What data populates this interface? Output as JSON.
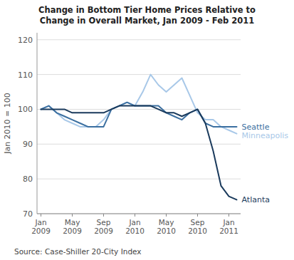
{
  "chart_data": {
    "type": "line",
    "title": "Change in Bottom Tier Home Prices Relative to\nChange in Overall Market, Jan 2009 - Feb 2011",
    "y_label": "Jan 2010 = 100",
    "source": "Source:  Case-Shiller 20-City Index",
    "categories": [
      "Jan\n2009",
      null,
      null,
      null,
      "May\n2009",
      null,
      null,
      null,
      "Sep\n2009",
      null,
      null,
      null,
      "Jan\n2010",
      null,
      null,
      null,
      "May\n2010",
      null,
      null,
      null,
      "Sep\n2010",
      null,
      null,
      null,
      "Jan\n2011",
      null
    ],
    "ylim": [
      70,
      122
    ],
    "yticks": [
      70,
      80,
      90,
      100,
      110,
      120
    ],
    "grid": true,
    "series": [
      {
        "name": "Minneapolis",
        "color": "#a8c8e8",
        "values": [
          100,
          101,
          99,
          97,
          96,
          95,
          95,
          95,
          97,
          100,
          101,
          102,
          101,
          105,
          110,
          107,
          105,
          107,
          109,
          104,
          99,
          97,
          97,
          95,
          94,
          93
        ]
      },
      {
        "name": "Seattle",
        "color": "#3b6fa0",
        "values": [
          100,
          101,
          99,
          98,
          97,
          96,
          95,
          95,
          95,
          100,
          101,
          102,
          101,
          101,
          101,
          101,
          99,
          98,
          97,
          99,
          100,
          96,
          95,
          95,
          95,
          95
        ]
      },
      {
        "name": "Atlanta",
        "color": "#1a3a5c",
        "values": [
          100,
          100,
          100,
          100,
          99,
          99,
          99,
          99,
          99,
          100,
          101,
          101,
          101,
          101,
          101,
          100,
          99,
          99,
          98,
          99,
          100,
          96,
          88,
          78,
          75,
          74
        ]
      }
    ]
  }
}
